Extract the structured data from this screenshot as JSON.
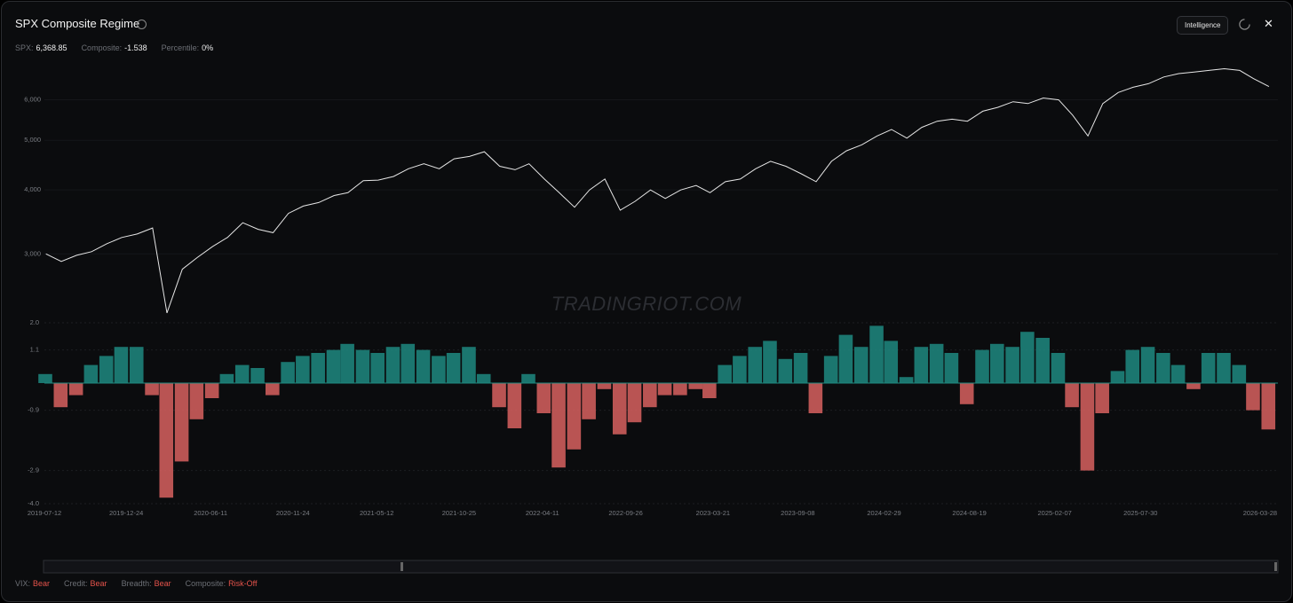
{
  "header": {
    "title": "SPX Composite Regime",
    "stats": [
      {
        "label": "SPX:",
        "value": "6,368.85"
      },
      {
        "label": "Composite:",
        "value": "-1.538"
      },
      {
        "label": "Percentile:",
        "value": "0%"
      }
    ],
    "button": "Intelligence",
    "watermark": "TRADINGRIOT.COM"
  },
  "chart_data": [
    {
      "type": "line",
      "color": "#e6e6e6",
      "log_scale": true,
      "x": [
        "2019-07-15",
        "2019-08-15",
        "2019-09-15",
        "2019-10-15",
        "2019-11-15",
        "2019-12-15",
        "2020-01-15",
        "2020-02-15",
        "2020-03-15",
        "2020-04-15",
        "2020-05-15",
        "2020-06-15",
        "2020-07-15",
        "2020-08-15",
        "2020-09-15",
        "2020-10-15",
        "2020-11-15",
        "2020-12-15",
        "2021-01-15",
        "2021-02-15",
        "2021-03-15",
        "2021-04-15",
        "2021-05-15",
        "2021-06-15",
        "2021-07-15",
        "2021-08-15",
        "2021-09-15",
        "2021-10-15",
        "2021-11-15",
        "2021-12-15",
        "2022-01-15",
        "2022-02-15",
        "2022-03-15",
        "2022-04-15",
        "2022-05-15",
        "2022-06-15",
        "2022-07-15",
        "2022-08-15",
        "2022-09-15",
        "2022-10-15",
        "2022-11-15",
        "2022-12-15",
        "2023-01-15",
        "2023-02-15",
        "2023-03-15",
        "2023-04-15",
        "2023-05-15",
        "2023-06-15",
        "2023-07-15",
        "2023-08-15",
        "2023-09-15",
        "2023-10-15",
        "2023-11-15",
        "2023-12-15",
        "2024-01-15",
        "2024-02-15",
        "2024-03-15",
        "2024-04-15",
        "2024-05-15",
        "2024-06-15",
        "2024-07-15",
        "2024-08-15",
        "2024-09-15",
        "2024-10-15",
        "2024-11-15",
        "2024-12-15",
        "2025-01-15",
        "2025-02-15",
        "2025-03-15",
        "2025-04-15",
        "2025-05-15",
        "2025-06-15",
        "2025-07-15",
        "2025-08-15",
        "2025-09-15",
        "2025-10-15",
        "2025-11-15",
        "2025-12-15",
        "2026-01-15",
        "2026-02-15",
        "2026-03-15",
        "2026-04-15"
      ],
      "values": [
        3000,
        2900,
        2980,
        3030,
        3140,
        3230,
        3280,
        3370,
        2300,
        2800,
        2950,
        3100,
        3230,
        3450,
        3350,
        3300,
        3600,
        3720,
        3780,
        3900,
        3950,
        4170,
        4180,
        4250,
        4400,
        4500,
        4400,
        4600,
        4650,
        4750,
        4450,
        4380,
        4500,
        4200,
        3950,
        3700,
        4000,
        4200,
        3650,
        3800,
        4000,
        3850,
        4000,
        4080,
        3950,
        4150,
        4200,
        4400,
        4550,
        4450,
        4300,
        4150,
        4550,
        4770,
        4900,
        5100,
        5250,
        5050,
        5300,
        5450,
        5500,
        5450,
        5700,
        5800,
        5950,
        5900,
        6050,
        6000,
        5600,
        5100,
        5900,
        6200,
        6350,
        6450,
        6650,
        6750,
        6800,
        6850,
        6900,
        6850,
        6600,
        6368.85
      ],
      "xlim": [
        "2019-07-12",
        "2026-05-03"
      ],
      "ylim": [
        2200,
        7400
      ],
      "yticks": [
        {
          "value": 3000,
          "label": "3,000"
        },
        {
          "value": 4000,
          "label": "4,000"
        },
        {
          "value": 5000,
          "label": "5,000"
        },
        {
          "value": 6000,
          "label": "6,000"
        }
      ]
    },
    {
      "type": "bar",
      "positive_color": "#1f8a80",
      "negative_color": "#d8625f",
      "grid": true,
      "x": [
        "2019-07-15",
        "2019-08-15",
        "2019-09-15",
        "2019-10-15",
        "2019-11-15",
        "2019-12-15",
        "2020-01-15",
        "2020-02-15",
        "2020-03-15",
        "2020-04-15",
        "2020-05-15",
        "2020-06-15",
        "2020-07-15",
        "2020-08-15",
        "2020-09-15",
        "2020-10-15",
        "2020-11-15",
        "2020-12-15",
        "2021-01-15",
        "2021-02-15",
        "2021-03-15",
        "2021-04-15",
        "2021-05-15",
        "2021-06-15",
        "2021-07-15",
        "2021-08-15",
        "2021-09-15",
        "2021-10-15",
        "2021-11-15",
        "2021-12-15",
        "2022-01-15",
        "2022-02-15",
        "2022-03-15",
        "2022-04-15",
        "2022-05-15",
        "2022-06-15",
        "2022-07-15",
        "2022-08-15",
        "2022-09-15",
        "2022-10-15",
        "2022-11-15",
        "2022-12-15",
        "2023-01-15",
        "2023-02-15",
        "2023-03-15",
        "2023-04-15",
        "2023-05-15",
        "2023-06-15",
        "2023-07-15",
        "2023-08-15",
        "2023-09-15",
        "2023-10-15",
        "2023-11-15",
        "2023-12-15",
        "2024-01-15",
        "2024-02-15",
        "2024-03-15",
        "2024-04-15",
        "2024-05-15",
        "2024-06-15",
        "2024-07-15",
        "2024-08-15",
        "2024-09-15",
        "2024-10-15",
        "2024-11-15",
        "2024-12-15",
        "2025-01-15",
        "2025-02-15",
        "2025-03-15",
        "2025-04-15",
        "2025-05-15",
        "2025-06-15",
        "2025-07-15",
        "2025-08-15",
        "2025-09-15",
        "2025-10-15",
        "2025-11-15",
        "2025-12-15",
        "2026-01-15",
        "2026-02-15",
        "2026-03-15",
        "2026-04-15"
      ],
      "values": [
        0.3,
        -0.8,
        -0.4,
        0.6,
        0.9,
        1.2,
        1.2,
        -0.4,
        -3.8,
        -2.6,
        -1.2,
        -0.5,
        0.3,
        0.6,
        0.5,
        -0.4,
        0.7,
        0.9,
        1.0,
        1.1,
        1.3,
        1.1,
        1.0,
        1.2,
        1.3,
        1.1,
        0.9,
        1.0,
        1.2,
        0.3,
        -0.8,
        -1.5,
        0.3,
        -1.0,
        -2.8,
        -2.2,
        -1.2,
        -0.2,
        -1.7,
        -1.3,
        -0.8,
        -0.4,
        -0.4,
        -0.2,
        -0.5,
        0.6,
        0.9,
        1.2,
        1.4,
        0.8,
        1.0,
        -1.0,
        0.9,
        1.6,
        1.2,
        1.9,
        1.4,
        0.2,
        1.2,
        1.3,
        1.0,
        -0.7,
        1.1,
        1.3,
        1.2,
        1.7,
        1.5,
        1.0,
        -0.8,
        -2.9,
        -1.0,
        0.4,
        1.1,
        1.2,
        1.0,
        0.6,
        -0.2,
        1.0,
        1.0,
        0.6,
        -0.9,
        -1.538
      ],
      "xlim": [
        "2019-07-12",
        "2026-05-03"
      ],
      "xticks": [
        "2019-07-12",
        "2019-12-24",
        "2020-06-11",
        "2020-11-24",
        "2021-05-12",
        "2021-10-25",
        "2022-04-11",
        "2022-09-26",
        "2023-03-21",
        "2023-09-08",
        "2024-02-29",
        "2024-08-19",
        "2025-02-07",
        "2025-07-30",
        "2026-03-28"
      ],
      "ylim": [
        -4,
        2
      ],
      "yticks": [
        {
          "value": 2,
          "label": "2.0"
        },
        1.1,
        -0.9,
        -2.9,
        {
          "value": -4,
          "label": "-4.0"
        }
      ]
    }
  ],
  "status": [
    {
      "label": "VIX:",
      "value": "Bear"
    },
    {
      "label": "Credit:",
      "value": "Bear"
    },
    {
      "label": "Breadth:",
      "value": "Bear"
    },
    {
      "label": "Composite:",
      "value": "Risk-Off"
    }
  ]
}
